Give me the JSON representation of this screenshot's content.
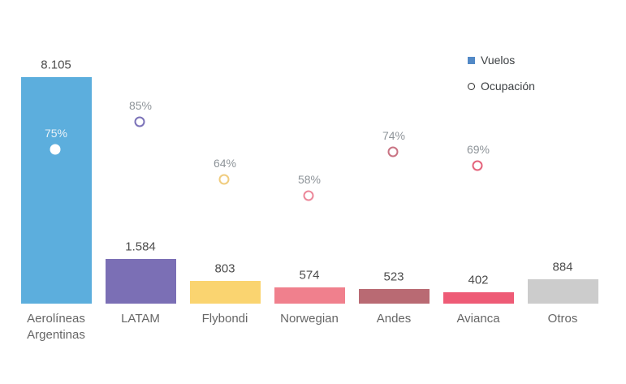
{
  "legend": {
    "vuelos_label": "Vuelos",
    "ocupacion_label": "Ocupación",
    "vuelos_marker_color": "#5289C6",
    "ocupacion_marker_outline": "#2B2B2B"
  },
  "styles": {
    "background": "#FFFFFF",
    "value_label_color": "#4D4D4D",
    "category_label_color": "#666666",
    "legend_text_color": "#3C4043"
  },
  "chart_data": {
    "type": "bar",
    "title": "",
    "xlabel": "",
    "ylabel": "",
    "categories": [
      "Aerolíneas Argentinas",
      "LATAM",
      "Flybondi",
      "Norwegian",
      "Andes",
      "Avianca",
      "Otros"
    ],
    "series": [
      {
        "name": "Vuelos",
        "type": "bar",
        "values": [
          8105,
          1584,
          803,
          574,
          523,
          402,
          884
        ],
        "value_labels": [
          "8.105",
          "1.584",
          "803",
          "574",
          "523",
          "402",
          "884"
        ],
        "bar_colors": [
          "#5CAEDD",
          "#7B6FB5",
          "#FAD470",
          "#F0808D",
          "#B96A73",
          "#EE5B76",
          "#CCCCCC"
        ]
      },
      {
        "name": "Ocupación",
        "type": "scatter",
        "values": [
          75,
          85,
          64,
          58,
          74,
          69,
          null
        ],
        "point_labels": [
          "75%",
          "85%",
          "64%",
          "58%",
          "74%",
          "69%",
          null
        ],
        "marker_stroke_colors": [
          "#FFFFFF",
          "#7B72B8",
          "#F0CC7E",
          "#EC8799",
          "#C97383",
          "#E4637B",
          null
        ],
        "marker_fills": [
          "#FFFFFF",
          "transparent",
          "transparent",
          "transparent",
          "transparent",
          "transparent",
          null
        ],
        "label_colors": [
          "#E9F2F8",
          "#8E9499",
          "#8E9499",
          "#8E9499",
          "#8E9499",
          "#8E9499",
          null
        ]
      }
    ],
    "ylim": [
      0,
      8105
    ],
    "y2lim_pct": [
      0,
      100
    ],
    "grid": false,
    "axes_visible": false,
    "legend_position": "top-right"
  }
}
